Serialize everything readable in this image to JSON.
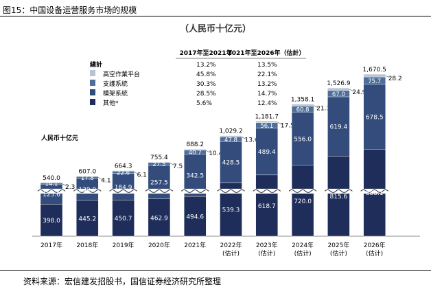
{
  "figure_title": "图15：中国设备运营服务市场的规模",
  "source": "资料来源：宏信建发招股书，国信证券经济研究所整理",
  "chart_data": {
    "type": "stacked-bar",
    "title": "（人民币十亿元）",
    "ylabel": "人民币十亿元",
    "categories": [
      [
        "2017年"
      ],
      [
        "2018年"
      ],
      [
        "2019年"
      ],
      [
        "2020年"
      ],
      [
        "2021年"
      ],
      [
        "2022年",
        "(估计)"
      ],
      [
        "2023年",
        "(估计)"
      ],
      [
        "2024年",
        "(估计)"
      ],
      [
        "2025年",
        "(估计)"
      ],
      [
        "2026年",
        "(估计)"
      ]
    ],
    "totals": [
      "540.0",
      "607.0",
      "664.3",
      "755.4",
      "888.2",
      "1,029.2",
      "1,181.7",
      "1,358.1",
      "1,526.9",
      "1,670.5"
    ],
    "series": [
      {
        "name": "其他*",
        "color": "#1f2d5a",
        "values": [
          398.0,
          445.2,
          450.7,
          462.9,
          494.6,
          539.3,
          618.7,
          720.0,
          815.6,
          888.1
        ],
        "labels": [
          "398.0",
          "445.2",
          "450.7",
          "462.9",
          "494.6",
          "539.3",
          "618.7",
          "720.0",
          "815.6",
          "888.1"
        ]
      },
      {
        "name": "模架系統",
        "color": "#334c7c",
        "values": [
          125.6,
          139.9,
          184.9,
          257.5,
          342.5,
          428.5,
          489.4,
          556.0,
          619.4,
          678.5
        ],
        "labels": [
          "125.6",
          "139.9",
          "184.9",
          "257.5",
          "342.5",
          "428.5",
          "489.4",
          "556.0",
          "619.4",
          "678.5"
        ]
      },
      {
        "name": "支護系統",
        "color": "#4f6f9a",
        "values": [
          14.1,
          17.8,
          22.6,
          27.5,
          40.7,
          47.8,
          56.1,
          60.8,
          67.0,
          75.7
        ],
        "labels": [
          "14.1",
          "17.8",
          "22.6",
          "27.5",
          "40.7",
          "47.8",
          "56.1",
          "60.8",
          "67.0",
          "75.7"
        ]
      },
      {
        "name": "高空作業平台",
        "color": "#b8c3d3",
        "values": [
          2.3,
          4.1,
          6.1,
          7.5,
          10.4,
          13.6,
          17.5,
          21.3,
          24.9,
          28.2
        ],
        "labels": [
          "2.3",
          "4.1",
          "6.1",
          "7.5",
          "10.4",
          "13.6",
          "17.5",
          "21.3",
          "24.9",
          "28.2"
        ]
      }
    ],
    "cagr_table": {
      "headers": [
        "2017年至2021年",
        "2021年至2026年（估計）"
      ],
      "rows": [
        {
          "label": "總計",
          "a": "13.2%",
          "b": "13.5%"
        },
        {
          "label": "高空作業平台",
          "a": "45.8%",
          "b": "22.1%"
        },
        {
          "label": "支護系統",
          "a": "30.3%",
          "b": "13.2%"
        },
        {
          "label": "模架系統",
          "a": "28.5%",
          "b": "14.7%"
        },
        {
          "label": "其他*",
          "a": "5.6%",
          "b": "12.4%"
        }
      ]
    },
    "axis_break": true,
    "gridlines": false,
    "legend_position": "top-left"
  }
}
